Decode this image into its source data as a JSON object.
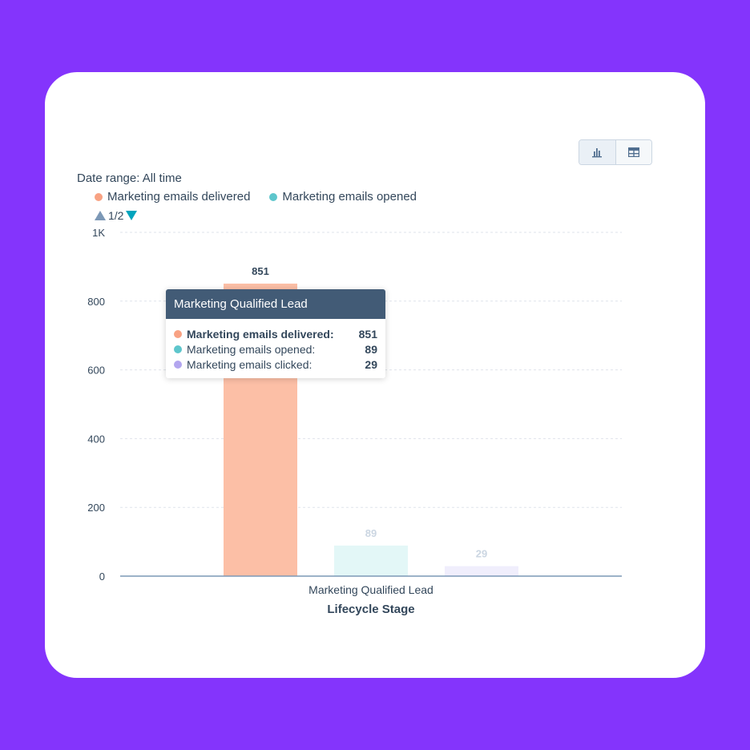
{
  "colors": {
    "background": "#8434fc",
    "delivered": "#f8a283",
    "opened": "#5ec6cc",
    "clicked": "#b3a6ef",
    "tooltip_header": "#425b76",
    "text": "#33475b"
  },
  "toolbar": {
    "chart_view_icon": "bar-chart-icon",
    "table_view_icon": "table-icon"
  },
  "filters": {
    "date_range": "Date range: All time"
  },
  "legend": {
    "items": [
      {
        "label": "Marketing emails delivered",
        "color": "#f8a283"
      },
      {
        "label": "Marketing emails opened",
        "color": "#5ec6cc"
      }
    ],
    "page": "1/2"
  },
  "tooltip": {
    "title": "Marketing Qualified Lead",
    "rows": [
      {
        "label": "Marketing emails delivered:",
        "value": "851"
      },
      {
        "label": "Marketing emails opened:",
        "value": "89"
      },
      {
        "label": "Marketing emails clicked:",
        "value": "29"
      }
    ]
  },
  "chart_data": {
    "type": "bar",
    "categories": [
      "Marketing Qualified Lead"
    ],
    "series": [
      {
        "name": "Marketing emails delivered",
        "values": [
          851
        ],
        "color": "#f8a283"
      },
      {
        "name": "Marketing emails opened",
        "values": [
          89
        ],
        "color": "#5ec6cc"
      },
      {
        "name": "Marketing emails clicked",
        "values": [
          29
        ],
        "color": "#b3a6ef"
      }
    ],
    "xlabel": "Lifecycle Stage",
    "ylabel": "",
    "ylim": [
      0,
      1000
    ],
    "yticks": [
      "0",
      "200",
      "400",
      "600",
      "800",
      "1K"
    ],
    "grid": true,
    "legend_position": "top-left"
  }
}
